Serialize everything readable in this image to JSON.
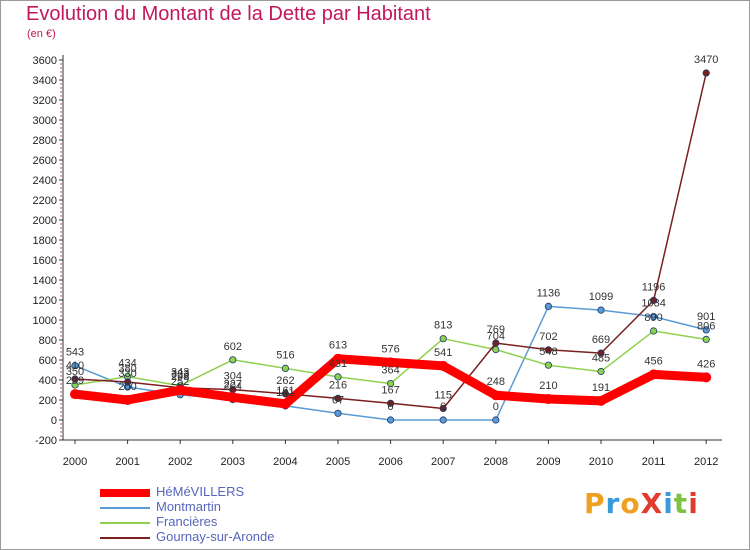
{
  "header": {
    "title": "Evolution du Montant de la Dette par Habitant",
    "subtitle": "(en €)"
  },
  "logo": {
    "text": "ProXiti",
    "letters": [
      "P",
      "r",
      "o",
      "X",
      "i",
      "t",
      "i"
    ],
    "colors": [
      "#f0a020",
      "#3a9ad9",
      "#f0a020",
      "#e23b2e",
      "#3a9ad9",
      "#7cc243",
      "#e23b2e"
    ]
  },
  "chart_data": {
    "type": "line",
    "title": "Evolution du Montant de la Dette par Habitant",
    "subtitle": "(en €)",
    "xlabel": "",
    "ylabel": "",
    "x": [
      "2000",
      "2001",
      "2002",
      "2003",
      "2004",
      "2005",
      "2006",
      "2007",
      "2008",
      "2009",
      "2010",
      "2011",
      "2012"
    ],
    "ylim": [
      -200,
      3600
    ],
    "yticks": [
      -200,
      0,
      200,
      400,
      600,
      800,
      1000,
      1200,
      1400,
      1600,
      1800,
      2000,
      2200,
      2400,
      2600,
      2800,
      3000,
      3200,
      3400,
      3600
    ],
    "grid": false,
    "legend_position": "bottom-left",
    "series": [
      {
        "name": "HéMéVILLERS",
        "color": "#ff0000",
        "values": [
          259,
          200,
          298,
          227,
          161,
          613,
          576,
          541,
          248,
          210,
          191,
          456,
          426
        ],
        "labels": [
          "259",
          "200",
          "298",
          "227",
          "161",
          "613",
          "576",
          "541",
          "248",
          "210",
          "191",
          "456",
          "426"
        ]
      },
      {
        "name": "Montmartin",
        "color": "#5b9bd5",
        "values": [
          543,
          330,
          252,
          204,
          141,
          67,
          0,
          0,
          0,
          1136,
          1099,
          1034,
          901
        ],
        "labels": [
          "543",
          "330",
          "252",
          "204",
          "141",
          "67",
          "0",
          "0",
          "0",
          "1136",
          "1099",
          "1034",
          "901"
        ]
      },
      {
        "name": "Francières",
        "color": "#8fd14f",
        "values": [
          350,
          434,
          343,
          602,
          516,
          431,
          364,
          813,
          704,
          548,
          485,
          890,
          806
        ],
        "labels": [
          "350",
          "434",
          "343",
          "602",
          "516",
          "431",
          "364",
          "813",
          "704",
          "548",
          "485",
          "890",
          "806"
        ]
      },
      {
        "name": "Gournay-sur-Aronde",
        "color": "#7b1f1f",
        "values": [
          410,
          380,
          323,
          304,
          262,
          216,
          167,
          115,
          769,
          702,
          669,
          1196,
          3470
        ],
        "labels": [
          "410",
          "380",
          "323",
          "304",
          "262",
          "216",
          "167",
          "115",
          "769",
          "702",
          "669",
          "1196",
          "3470"
        ]
      }
    ]
  }
}
